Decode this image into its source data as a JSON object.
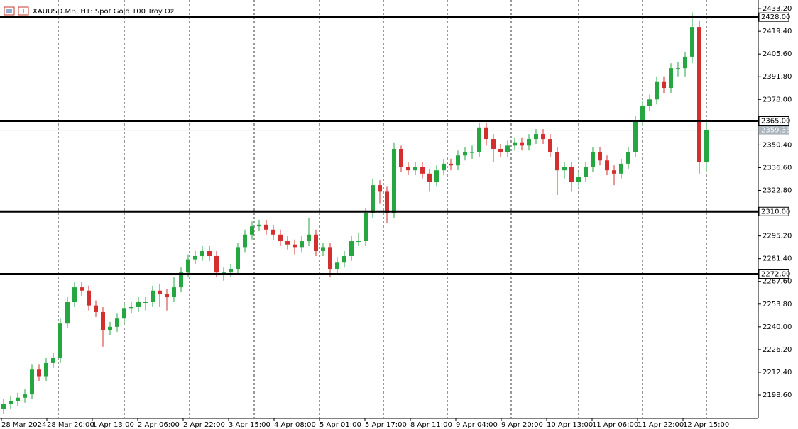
{
  "chart_data": {
    "type": "candlestick",
    "title": "XAUUSD.MB, H1:  Spot Gold 100 Troy Oz",
    "bull_color": "#26a641",
    "bear_color": "#d32f2f",
    "xlabels": [
      "28 Mar 2024",
      "28 Mar 20:00",
      "1 Apr 13:00",
      "2 Apr 06:00",
      "2 Apr 22:00",
      "3 Apr 15:00",
      "4 Apr 08:00",
      "5 Apr 01:00",
      "5 Apr 17:00",
      "8 Apr 11:00",
      "9 Apr 04:00",
      "9 Apr 20:00",
      "10 Apr 13:00",
      "11 Apr 06:00",
      "11 Apr 22:00",
      "12 Apr 15:00"
    ],
    "open": [
      2190,
      2193,
      2195,
      2197,
      2199,
      2214,
      2210,
      2218,
      2221,
      2242,
      2255,
      2264,
      2262,
      2253,
      2249,
      2238,
      2240,
      2245,
      2251,
      2252,
      2255,
      2255,
      2262,
      2260,
      2258,
      2264,
      2273,
      2281,
      2283,
      2286,
      2283,
      2273,
      2273,
      2275,
      2288,
      2296,
      2301,
      2302,
      2299,
      2296,
      2292,
      2290,
      2288,
      2292,
      2296,
      2286,
      2288,
      2275,
      2279,
      2283,
      2292,
      2292,
      2309,
      2326,
      2322,
      2309,
      2348,
      2337,
      2335,
      2337,
      2333,
      2328,
      2335,
      2339,
      2338,
      2344,
      2346,
      2346,
      2361,
      2354,
      2348,
      2346,
      2350,
      2352,
      2350,
      2354,
      2357,
      2354,
      2346,
      2335,
      2337,
      2328,
      2331,
      2337,
      2346,
      2341,
      2335,
      2333,
      2339,
      2346,
      2365,
      2374,
      2378,
      2389,
      2385,
      2397,
      2397,
      2404,
      2422,
      2340
    ],
    "high": [
      2196,
      2198,
      2200,
      2202,
      2217,
      2217,
      2221,
      2224,
      2245,
      2258,
      2267,
      2267,
      2265,
      2256,
      2252,
      2243,
      2248,
      2254,
      2255,
      2258,
      2258,
      2265,
      2266,
      2263,
      2270,
      2276,
      2284,
      2286,
      2289,
      2289,
      2286,
      2276,
      2278,
      2291,
      2299,
      2304,
      2305,
      2305,
      2302,
      2299,
      2295,
      2293,
      2295,
      2306,
      2299,
      2291,
      2291,
      2282,
      2286,
      2295,
      2297,
      2312,
      2330,
      2329,
      2325,
      2352,
      2350,
      2340,
      2340,
      2340,
      2336,
      2338,
      2342,
      2342,
      2347,
      2349,
      2350,
      2364,
      2364,
      2357,
      2351,
      2353,
      2355,
      2355,
      2357,
      2360,
      2360,
      2357,
      2349,
      2340,
      2340,
      2334,
      2340,
      2349,
      2349,
      2344,
      2338,
      2342,
      2349,
      2368,
      2377,
      2381,
      2392,
      2392,
      2400,
      2401,
      2407,
      2431,
      2426,
      2366
    ],
    "low": [
      2187,
      2190,
      2192,
      2194,
      2196,
      2207,
      2207,
      2215,
      2218,
      2239,
      2252,
      2259,
      2250,
      2246,
      2228,
      2235,
      2237,
      2242,
      2248,
      2249,
      2250,
      2252,
      2252,
      2250,
      2255,
      2261,
      2270,
      2278,
      2280,
      2280,
      2270,
      2268,
      2270,
      2272,
      2285,
      2293,
      2298,
      2296,
      2293,
      2289,
      2287,
      2284,
      2285,
      2289,
      2283,
      2283,
      2270,
      2272,
      2276,
      2280,
      2289,
      2289,
      2306,
      2315,
      2303,
      2306,
      2334,
      2332,
      2332,
      2330,
      2322,
      2325,
      2332,
      2335,
      2335,
      2341,
      2342,
      2343,
      2350,
      2340,
      2343,
      2343,
      2347,
      2347,
      2347,
      2351,
      2351,
      2343,
      2320,
      2330,
      2322,
      2325,
      2328,
      2334,
      2338,
      2332,
      2326,
      2330,
      2336,
      2343,
      2362,
      2371,
      2375,
      2382,
      2382,
      2392,
      2392,
      2400,
      2333,
      2334
    ],
    "close": [
      2193,
      2195,
      2197,
      2199,
      2214,
      2210,
      2218,
      2221,
      2242,
      2255,
      2264,
      2262,
      2253,
      2249,
      2238,
      2240,
      2245,
      2251,
      2252,
      2255,
      2255,
      2262,
      2260,
      2258,
      2264,
      2273,
      2281,
      2283,
      2286,
      2283,
      2273,
      2273,
      2275,
      2288,
      2296,
      2301,
      2302,
      2299,
      2296,
      2292,
      2290,
      2288,
      2292,
      2296,
      2286,
      2288,
      2275,
      2279,
      2283,
      2292,
      2292,
      2309,
      2326,
      2322,
      2309,
      2348,
      2337,
      2335,
      2337,
      2333,
      2328,
      2335,
      2339,
      2338,
      2344,
      2346,
      2346,
      2361,
      2354,
      2348,
      2346,
      2350,
      2352,
      2350,
      2354,
      2357,
      2354,
      2346,
      2335,
      2337,
      2328,
      2331,
      2337,
      2346,
      2341,
      2335,
      2333,
      2339,
      2346,
      2365,
      2374,
      2378,
      2389,
      2385,
      2397,
      2397,
      2404,
      2422,
      2340,
      2359.35
    ],
    "levels": [
      {
        "value": 2428,
        "label": "2428.00"
      },
      {
        "value": 2365,
        "label": "2365.00"
      },
      {
        "value": 2310,
        "label": "2310.00"
      },
      {
        "value": 2272,
        "label": "2272.00"
      }
    ],
    "current_price": {
      "value": 2359.35,
      "label": "2359.35"
    },
    "ylim": [
      2184.4,
      2438.4
    ],
    "yticks": [
      {
        "value": 2433.2,
        "label": "2433.20"
      },
      {
        "value": 2419.4,
        "label": "2419.40"
      },
      {
        "value": 2405.6,
        "label": "2405.60"
      },
      {
        "value": 2391.8,
        "label": "2391.80"
      },
      {
        "value": 2378,
        "label": "2378.00"
      },
      {
        "value": 2350.4,
        "label": "2350.40"
      },
      {
        "value": 2336.6,
        "label": "2336.60"
      },
      {
        "value": 2322.8,
        "label": "2322.80"
      },
      {
        "value": 2295.2,
        "label": "2295.20"
      },
      {
        "value": 2281.4,
        "label": "2281.40"
      },
      {
        "value": 2267.6,
        "label": "2267.60"
      },
      {
        "value": 2253.8,
        "label": "2253.80"
      },
      {
        "value": 2240,
        "label": "2240.00"
      },
      {
        "value": 2226.2,
        "label": "2226.20"
      },
      {
        "value": 2212.4,
        "label": "2212.40"
      },
      {
        "value": 2198.6,
        "label": "2198.60"
      }
    ]
  }
}
